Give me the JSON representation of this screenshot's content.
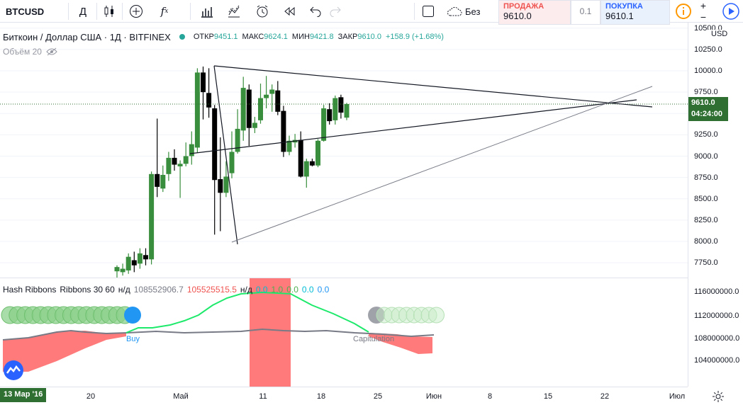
{
  "toolbar": {
    "symbol": "BTCUSD",
    "interval": "Д",
    "buttons": [
      "candles-icon",
      "add-icon",
      "indicators-icon",
      "templates-icon",
      "compare-icon",
      "alert-icon",
      "replay-icon",
      "undo-icon",
      "redo-icon"
    ],
    "layout_label": "Без",
    "sell_label": "ПРОДАЖА",
    "sell_price": "9610.0",
    "spread": "0.1",
    "buy_label": "ПОКУПКА",
    "buy_price": "9610.1"
  },
  "legend": {
    "title": "Биткоин / Доллар США · 1Д · BITFINEX",
    "open_k": "ОТКР",
    "open_v": "9451.1",
    "high_k": "МАКС",
    "high_v": "9624.1",
    "low_k": "МИН",
    "low_v": "9421.8",
    "close_k": "ЗАКР",
    "close_v": "9610.0",
    "change": "+158.9 (+1.68%)",
    "volume": "Объём 20"
  },
  "indicator": {
    "name": "Hash Ribbons",
    "params": "Ribbons 30 60",
    "values": [
      "н/д",
      "108552906.7",
      "105525515.5",
      "н/д",
      "0.0",
      "1.0",
      "0.0",
      "0.0",
      "0.0"
    ],
    "buy_label": "Buy",
    "capitulation_label": "Capitulation"
  },
  "axis": {
    "currency": "USD",
    "price_ticks": [
      "10500.0",
      "10250.0",
      "10000.0",
      "9750.0",
      "9500.0",
      "9250.0",
      "9000.0",
      "8750.0",
      "8500.0",
      "8250.0",
      "8000.0",
      "7750.0"
    ],
    "last_price": "9610.0",
    "countdown": "04:24:00",
    "ind_ticks": [
      "116000000.0",
      "112000000.0",
      "108000000.0",
      "104000000.0"
    ],
    "time_ticks": [
      "20",
      "Май",
      "11",
      "18",
      "25",
      "Июн",
      "8",
      "15",
      "22",
      "Июл"
    ],
    "date_badge": "13 Мар '16"
  },
  "colors": {
    "up": "#388e3c",
    "down": "#000000",
    "accent": "#2962ff",
    "bg": "#ffffff"
  },
  "chart_data": {
    "type": "candlestick",
    "candles": [
      {
        "o": 7650,
        "h": 7720,
        "l": 7560,
        "c": 7700
      },
      {
        "o": 7640,
        "h": 7740,
        "l": 7600,
        "c": 7680
      },
      {
        "o": 7660,
        "h": 7860,
        "l": 7620,
        "c": 7820
      },
      {
        "o": 7780,
        "h": 7880,
        "l": 7640,
        "c": 7720
      },
      {
        "o": 7740,
        "h": 7920,
        "l": 7680,
        "c": 7860
      },
      {
        "o": 7840,
        "h": 7920,
        "l": 7720,
        "c": 7790
      },
      {
        "o": 7790,
        "h": 8820,
        "l": 7730,
        "c": 8790
      },
      {
        "o": 8790,
        "h": 9440,
        "l": 8520,
        "c": 8640
      },
      {
        "o": 8620,
        "h": 8890,
        "l": 8580,
        "c": 8780
      },
      {
        "o": 8790,
        "h": 9050,
        "l": 8710,
        "c": 8980
      },
      {
        "o": 8980,
        "h": 9080,
        "l": 8830,
        "c": 8900
      },
      {
        "o": 8880,
        "h": 8950,
        "l": 8510,
        "c": 8910
      },
      {
        "o": 8910,
        "h": 9160,
        "l": 8880,
        "c": 9000
      },
      {
        "o": 9000,
        "h": 9290,
        "l": 8900,
        "c": 9140
      },
      {
        "o": 9100,
        "h": 10030,
        "l": 9040,
        "c": 9980
      },
      {
        "o": 9980,
        "h": 10050,
        "l": 9430,
        "c": 9750
      },
      {
        "o": 9740,
        "h": 10030,
        "l": 9450,
        "c": 9570
      },
      {
        "o": 9560,
        "h": 9600,
        "l": 8080,
        "c": 8720
      },
      {
        "o": 8730,
        "h": 9220,
        "l": 8120,
        "c": 8570
      },
      {
        "o": 8570,
        "h": 8940,
        "l": 8520,
        "c": 8760
      },
      {
        "o": 8800,
        "h": 9290,
        "l": 8740,
        "c": 9050
      },
      {
        "o": 9050,
        "h": 9550,
        "l": 9030,
        "c": 9320
      },
      {
        "o": 9300,
        "h": 9930,
        "l": 9180,
        "c": 9800
      },
      {
        "o": 9780,
        "h": 9840,
        "l": 9120,
        "c": 9330
      },
      {
        "o": 9330,
        "h": 9460,
        "l": 9270,
        "c": 9390
      },
      {
        "o": 9420,
        "h": 9850,
        "l": 9380,
        "c": 9680
      },
      {
        "o": 9680,
        "h": 9940,
        "l": 9560,
        "c": 9720
      },
      {
        "o": 9730,
        "h": 9840,
        "l": 9520,
        "c": 9780
      },
      {
        "o": 9770,
        "h": 9880,
        "l": 9480,
        "c": 9520
      },
      {
        "o": 9530,
        "h": 9590,
        "l": 8990,
        "c": 9050
      },
      {
        "o": 9050,
        "h": 9240,
        "l": 9010,
        "c": 9180
      },
      {
        "o": 9160,
        "h": 9260,
        "l": 9100,
        "c": 9190
      },
      {
        "o": 9190,
        "h": 9290,
        "l": 8750,
        "c": 8760
      },
      {
        "o": 8760,
        "h": 8970,
        "l": 8630,
        "c": 8940
      },
      {
        "o": 8940,
        "h": 8970,
        "l": 8880,
        "c": 8890
      },
      {
        "o": 8890,
        "h": 9200,
        "l": 8870,
        "c": 9180
      },
      {
        "o": 9180,
        "h": 9600,
        "l": 9170,
        "c": 9560
      },
      {
        "o": 9550,
        "h": 9620,
        "l": 9370,
        "c": 9410
      },
      {
        "o": 9420,
        "h": 9710,
        "l": 9370,
        "c": 9680
      },
      {
        "o": 9690,
        "h": 9720,
        "l": 9440,
        "c": 9510
      },
      {
        "o": 9451.1,
        "h": 9624.1,
        "l": 9421.8,
        "c": 9610.0
      }
    ]
  }
}
